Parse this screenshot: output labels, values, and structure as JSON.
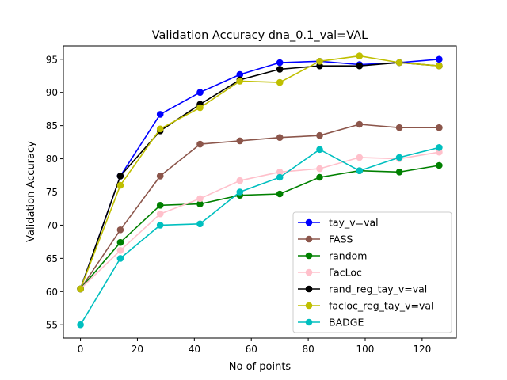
{
  "chart_data": {
    "type": "line",
    "title": "Validation Accuracy dna_0.1_val=VAL",
    "xlabel": "No of points",
    "ylabel": "Validation Accuracy",
    "xlim": [
      -6,
      132
    ],
    "ylim": [
      53,
      97
    ],
    "xticks": [
      0,
      20,
      40,
      60,
      80,
      100,
      120
    ],
    "yticks": [
      55,
      60,
      65,
      70,
      75,
      80,
      85,
      90,
      95
    ],
    "grid": false,
    "legend_position": "lower-right",
    "x": [
      0,
      14,
      28,
      42,
      56,
      70,
      84,
      98,
      112,
      126
    ],
    "series": [
      {
        "name": "tay_v=val",
        "color": "#0000ff",
        "values": [
          60.4,
          77.4,
          86.7,
          90.0,
          92.7,
          94.5,
          94.7,
          94.2,
          94.5,
          95.0
        ]
      },
      {
        "name": "FASS",
        "color": "#8c564b",
        "values": [
          60.4,
          69.3,
          77.4,
          82.2,
          82.7,
          83.2,
          83.5,
          85.2,
          84.7,
          84.7
        ]
      },
      {
        "name": "random",
        "color": "#008000",
        "values": [
          60.4,
          67.4,
          73.0,
          73.2,
          74.5,
          74.7,
          77.2,
          78.2,
          78.0,
          79.0
        ]
      },
      {
        "name": "FacLoc",
        "color": "#ffc0cb",
        "values": [
          60.4,
          66.2,
          71.7,
          74.0,
          76.7,
          78.0,
          78.5,
          80.2,
          80.0,
          81.0
        ]
      },
      {
        "name": "rand_reg_tay_v=val",
        "color": "#000000",
        "values": [
          60.4,
          77.4,
          84.2,
          88.2,
          91.9,
          93.5,
          94.0,
          94.0,
          94.5,
          94.0
        ]
      },
      {
        "name": "facloc_reg_tay_v=val",
        "color": "#bfbf00",
        "values": [
          60.4,
          76.0,
          84.5,
          87.7,
          91.7,
          91.5,
          94.7,
          95.5,
          94.5,
          94.0
        ]
      },
      {
        "name": "BADGE",
        "color": "#00bfbf",
        "values": [
          55.0,
          65.0,
          70.0,
          70.2,
          75.0,
          77.2,
          81.4,
          78.2,
          80.2,
          81.7
        ]
      }
    ]
  }
}
